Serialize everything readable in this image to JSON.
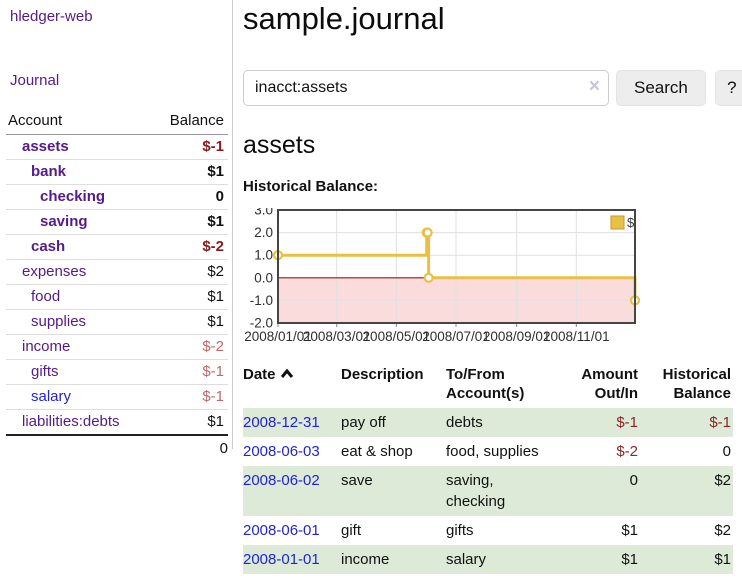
{
  "app": {
    "title": "hledger-web"
  },
  "sidebar": {
    "journal_label": "Journal",
    "table": {
      "header_account": "Account",
      "header_balance": "Balance",
      "rows": [
        {
          "name": "assets",
          "balance": "$-1",
          "level": 1,
          "bold": true,
          "negative": true,
          "link_color": "purple"
        },
        {
          "name": "bank",
          "balance": "$1",
          "level": 2,
          "bold": true,
          "negative": false,
          "link_color": "purple"
        },
        {
          "name": "checking",
          "balance": "0",
          "level": 3,
          "bold": true,
          "negative": false,
          "link_color": "purple"
        },
        {
          "name": "saving",
          "balance": "$1",
          "level": 3,
          "bold": true,
          "negative": false,
          "link_color": "purple"
        },
        {
          "name": "cash",
          "balance": "$-2",
          "level": 2,
          "bold": true,
          "negative": true,
          "link_color": "purple"
        },
        {
          "name": "expenses",
          "balance": "$2",
          "level": 1,
          "bold": false,
          "negative": false,
          "link_color": "purple"
        },
        {
          "name": "food",
          "balance": "$1",
          "level": 2,
          "bold": false,
          "negative": false,
          "link_color": "purple"
        },
        {
          "name": "supplies",
          "balance": "$1",
          "level": 2,
          "bold": false,
          "negative": false,
          "link_color": "purple"
        },
        {
          "name": "income",
          "balance": "$-2",
          "level": 1,
          "bold": false,
          "negative": true,
          "link_color": "purple"
        },
        {
          "name": "gifts",
          "balance": "$-1",
          "level": 2,
          "bold": false,
          "negative": true,
          "link_color": "purple"
        },
        {
          "name": "salary",
          "balance": "$-1",
          "level": 2,
          "bold": false,
          "negative": true,
          "link_color": "blue"
        },
        {
          "name": "liabilities:debts",
          "balance": "$1",
          "level": 1,
          "bold": false,
          "negative": false,
          "link_color": "purple"
        }
      ],
      "total": "0"
    }
  },
  "main": {
    "title": "sample.journal",
    "search": {
      "value": "inacct:assets",
      "clear_icon": "×",
      "button_label": "Search",
      "help_label": "?"
    },
    "account_heading": "assets",
    "chart_label": "Historical Balance:"
  },
  "chart_data": {
    "type": "line",
    "title": "Historical Balance",
    "steps": true,
    "series": [
      {
        "name": "$",
        "color": "#e9c043",
        "points": [
          {
            "date": "2008-01-01",
            "day": 0,
            "value": 1
          },
          {
            "date": "2008-06-01",
            "day": 152,
            "value": 2
          },
          {
            "date": "2008-06-02",
            "day": 153,
            "value": 2
          },
          {
            "date": "2008-06-03",
            "day": 154,
            "value": 0
          },
          {
            "date": "2008-12-31",
            "day": 365,
            "value": -1
          }
        ]
      }
    ],
    "x_ticks": [
      {
        "label": "2008/01/01",
        "day": 0
      },
      {
        "label": "2008/03/01",
        "day": 60
      },
      {
        "label": "2008/05/01",
        "day": 121
      },
      {
        "label": "2008/07/01",
        "day": 182
      },
      {
        "label": "2008/09/01",
        "day": 244
      },
      {
        "label": "2008/11/01",
        "day": 305
      }
    ],
    "y_ticks": [
      3.0,
      2.0,
      1.0,
      0.0,
      -1.0,
      -2.0
    ],
    "ylim": [
      -2,
      3
    ],
    "xlim_days": [
      0,
      365
    ],
    "grid": true,
    "negative_fill": "#fbdcdc",
    "zero_line_color": "#8b1a1a",
    "grid_color": "#e0e0e0",
    "border_color": "#454545",
    "legend": {
      "label": "$",
      "position": "top-right"
    }
  },
  "register": {
    "headers": {
      "date": "Date",
      "description": "Description",
      "tofrom": "To/From\nAccount(s)",
      "amount": "Amount\nOut/In",
      "balance": "Historical\nBalance"
    },
    "rows": [
      {
        "date": "2008-12-31",
        "description": "pay off",
        "accounts": "debts",
        "amount": "$-1",
        "balance": "$-1"
      },
      {
        "date": "2008-06-03",
        "description": "eat & shop",
        "accounts": "food, supplies",
        "amount": "$-2",
        "balance": "0"
      },
      {
        "date": "2008-06-02",
        "description": "save",
        "accounts": "saving,\nchecking",
        "amount": "0",
        "balance": "$2"
      },
      {
        "date": "2008-06-01",
        "description": "gift",
        "accounts": "gifts",
        "amount": "$1",
        "balance": "$2"
      },
      {
        "date": "2008-01-01",
        "description": "income",
        "accounts": "salary",
        "amount": "$1",
        "balance": "$1"
      }
    ]
  }
}
